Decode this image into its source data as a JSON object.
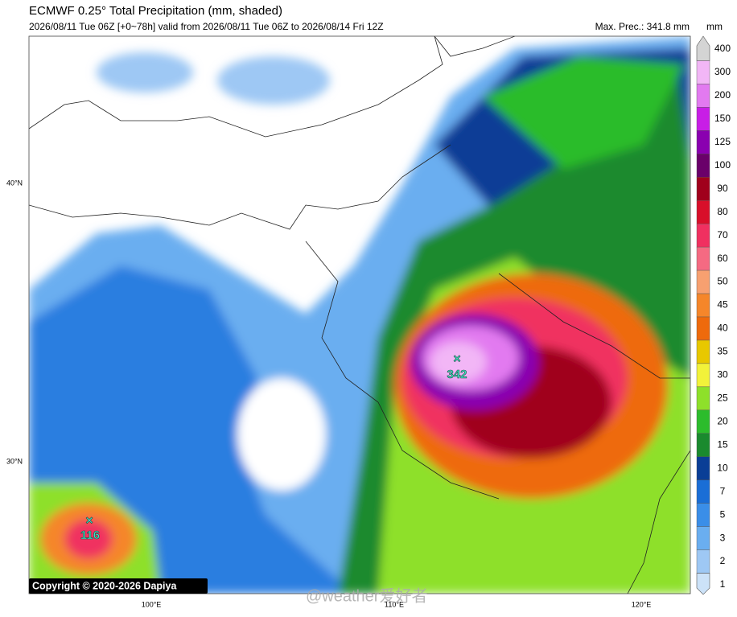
{
  "header": {
    "title": "ECMWF 0.25° Total Precipitation (mm, shaded)",
    "subtitle": "2026/08/11 Tue 06Z [+0~78h] valid from 2026/08/11 Tue 06Z to 2026/08/14 Fri 12Z",
    "max_prec": "Max. Prec.: 341.8 mm"
  },
  "colorbar": {
    "unit": "mm",
    "levels": [
      {
        "label": 400,
        "color": "#d4d4d4"
      },
      {
        "label": 300,
        "color": "#f2b6f6"
      },
      {
        "label": 200,
        "color": "#e27af0"
      },
      {
        "label": 150,
        "color": "#c81ee6"
      },
      {
        "label": 125,
        "color": "#8a00b0"
      },
      {
        "label": 100,
        "color": "#6a006a"
      },
      {
        "label": 90,
        "color": "#a0001c"
      },
      {
        "label": 80,
        "color": "#d80f2a"
      },
      {
        "label": 70,
        "color": "#f03060"
      },
      {
        "label": 60,
        "color": "#f56a82"
      },
      {
        "label": 50,
        "color": "#f7a070"
      },
      {
        "label": 45,
        "color": "#f5862a"
      },
      {
        "label": 40,
        "color": "#ee6a0c"
      },
      {
        "label": 35,
        "color": "#e8c800"
      },
      {
        "label": 30,
        "color": "#f2f23a"
      },
      {
        "label": 25,
        "color": "#8ee02a"
      },
      {
        "label": 20,
        "color": "#2cbc2c"
      },
      {
        "label": 15,
        "color": "#1a8a2e"
      },
      {
        "label": 10,
        "color": "#0a3e96"
      },
      {
        "label": 7,
        "color": "#1a6ed6"
      },
      {
        "label": 5,
        "color": "#3a8ee8"
      },
      {
        "label": 3,
        "color": "#6aaef0"
      },
      {
        "label": 2,
        "color": "#9ec8f4"
      },
      {
        "label": 1,
        "color": "#cce2f8"
      }
    ]
  },
  "lat_labels": [
    "40°N",
    "30°N"
  ],
  "lon_labels": [
    "100°E",
    "110°E",
    "120°E"
  ],
  "markers": [
    {
      "label": "342"
    },
    {
      "label": "116"
    }
  ],
  "copyright": "Copyright © 2020-2026 Dapiya",
  "watermark": "@weather爱好者"
}
